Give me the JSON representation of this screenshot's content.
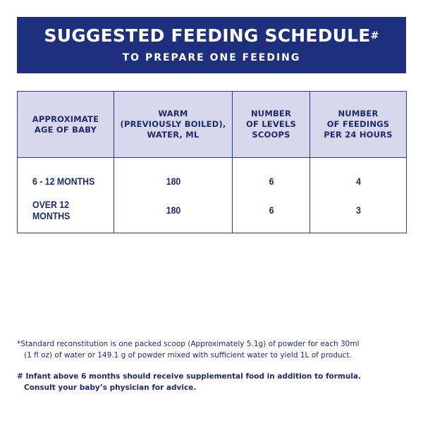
{
  "banner": {
    "title": "SUGGESTED FEEDING SCHEDULE",
    "title_mark": "#",
    "subtitle": "TO PREPARE ONE FEEDING"
  },
  "table": {
    "headers": [
      [
        "APPROXIMATE",
        "AGE OF BABY"
      ],
      [
        "WARM",
        "(PREVIOUSLY BOILED),",
        "WATER, ML"
      ],
      [
        "NUMBER",
        "OF LEVELS",
        "SCOOPS"
      ],
      [
        "NUMBER",
        "OF FEEDINGS",
        "PER 24 HOURS"
      ]
    ],
    "rows": [
      {
        "age": "6 - 12 MONTHS",
        "water": "180",
        "scoops": "6",
        "feedings": "4"
      },
      {
        "age": "OVER 12 MONTHS",
        "water": "180",
        "scoops": "6",
        "feedings": "3"
      }
    ]
  },
  "notes": {
    "standard_line1": "*Standard reconstitution is one packed scoop (Approximately 5.1g) of powder for each 30ml",
    "standard_line2": "(1 fl oz) of water or 149.1 g of powder mixed with sufficient water to yield 1L of product.",
    "infant_line1": "# Infant above 6 months should receive supplemental food in addition to formula.",
    "infant_line2": "Consult your baby’s physician for advice."
  },
  "colors": {
    "banner_bg": "#1e2f7e",
    "header_bg": "#d8d8ec",
    "text": "#1e2a6b"
  }
}
